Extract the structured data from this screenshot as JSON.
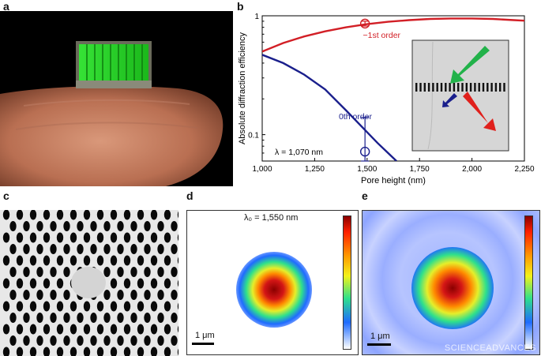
{
  "panels": {
    "a": {
      "letter": "a"
    },
    "b": {
      "letter": "b"
    },
    "c": {
      "letter": "c"
    },
    "d": {
      "letter": "d",
      "wavelength_label": "λ₀ = 1,550 nm",
      "scalebar_label": "1 μm"
    },
    "e": {
      "letter": "e",
      "scalebar_label": "1 μm"
    }
  },
  "credit": "SCIENCEADVANCES",
  "chart_data": {
    "type": "line",
    "xlabel": "Pore height (nm)",
    "ylabel": "Absolute diffraction efficiency",
    "xlim": [
      1000,
      2250
    ],
    "ylim": [
      0.06,
      1
    ],
    "yscale": "log",
    "x_ticks": [
      1000,
      1250,
      1500,
      1750,
      2000,
      2250
    ],
    "x_tick_labels": [
      "1,000",
      "1,250",
      "1,500",
      "1,750",
      "2,000",
      "2,250"
    ],
    "y_ticks": [
      0.1,
      1
    ],
    "y_tick_labels": [
      "0.1",
      "1"
    ],
    "annotation": "λ = 1,070 nm",
    "series": [
      {
        "name": "−1st order",
        "color": "#d21f26",
        "x": [
          1000,
          1100,
          1200,
          1300,
          1400,
          1500,
          1600,
          1700,
          1800,
          1900,
          2000,
          2100,
          2200,
          2250
        ],
        "y": [
          0.5,
          0.59,
          0.67,
          0.74,
          0.8,
          0.85,
          0.89,
          0.92,
          0.94,
          0.95,
          0.95,
          0.94,
          0.92,
          0.91
        ],
        "measured": {
          "x": 1490,
          "y": 0.86,
          "err_low": 0.82,
          "err_high": 0.9
        }
      },
      {
        "name": "0th order",
        "color": "#1a1f8c",
        "x": [
          1000,
          1100,
          1200,
          1300,
          1400,
          1500,
          1550,
          1600,
          1640
        ],
        "y": [
          0.47,
          0.4,
          0.32,
          0.24,
          0.16,
          0.105,
          0.085,
          0.07,
          0.06
        ],
        "measured": {
          "x": 1490,
          "y": 0.072,
          "err_low": 0.06,
          "err_high": 0.14
        }
      }
    ]
  }
}
